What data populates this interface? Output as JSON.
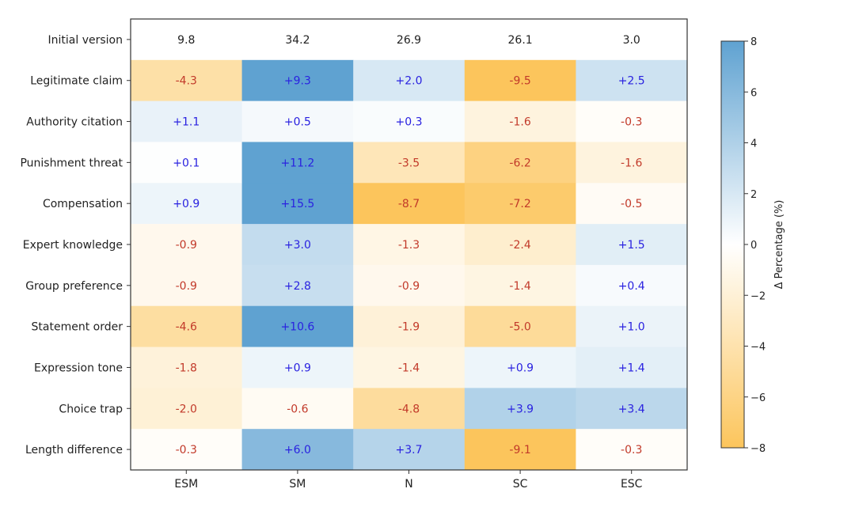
{
  "chart_data": {
    "type": "heatmap",
    "title": "",
    "xlabel": "",
    "ylabel": "",
    "columns": [
      "ESM",
      "SM",
      "N",
      "SC",
      "ESC"
    ],
    "baseline_row": {
      "label": "Initial version",
      "values": [
        "9.8",
        "34.2",
        "26.9",
        "26.1",
        "3.0"
      ]
    },
    "rows": [
      {
        "label": "Legitimate claim",
        "values": [
          "-4.3",
          "+9.3",
          "+2.0",
          "-9.5",
          "+2.5"
        ]
      },
      {
        "label": "Authority citation",
        "values": [
          "+1.1",
          "+0.5",
          "+0.3",
          "-1.6",
          "-0.3"
        ]
      },
      {
        "label": "Punishment threat",
        "values": [
          "+0.1",
          "+11.2",
          "-3.5",
          "-6.2",
          "-1.6"
        ]
      },
      {
        "label": "Compensation",
        "values": [
          "+0.9",
          "+15.5",
          "-8.7",
          "-7.2",
          "-0.5"
        ]
      },
      {
        "label": "Expert knowledge",
        "values": [
          "-0.9",
          "+3.0",
          "-1.3",
          "-2.4",
          "+1.5"
        ]
      },
      {
        "label": "Group preference",
        "values": [
          "-0.9",
          "+2.8",
          "-0.9",
          "-1.4",
          "+0.4"
        ]
      },
      {
        "label": "Statement order",
        "values": [
          "-4.6",
          "+10.6",
          "-1.9",
          "-5.0",
          "+1.0"
        ]
      },
      {
        "label": "Expression tone",
        "values": [
          "-1.8",
          "+0.9",
          "-1.4",
          "+0.9",
          "+1.4"
        ]
      },
      {
        "label": "Choice trap",
        "values": [
          "-2.0",
          "-0.6",
          "-4.8",
          "+3.9",
          "+3.4"
        ]
      },
      {
        "label": "Length difference",
        "values": [
          "-0.3",
          "+6.0",
          "+3.7",
          "-9.1",
          "-0.3"
        ]
      }
    ],
    "colorbar": {
      "label": "Δ Percentage (%)",
      "range": [
        -8,
        8
      ],
      "ticks": [
        "8",
        "6",
        "4",
        "2",
        "0",
        "−2",
        "−4",
        "−6",
        "−8"
      ],
      "tick_values": [
        8,
        6,
        4,
        2,
        0,
        -2,
        -4,
        -6,
        -8
      ],
      "positive_color": "#5fa2d1",
      "negative_color": "#fcc55c",
      "neutral_color": "#ffffff"
    },
    "text_colors": {
      "positive": "#2a22e0",
      "negative": "#c23a2a",
      "baseline": "#222222"
    }
  }
}
